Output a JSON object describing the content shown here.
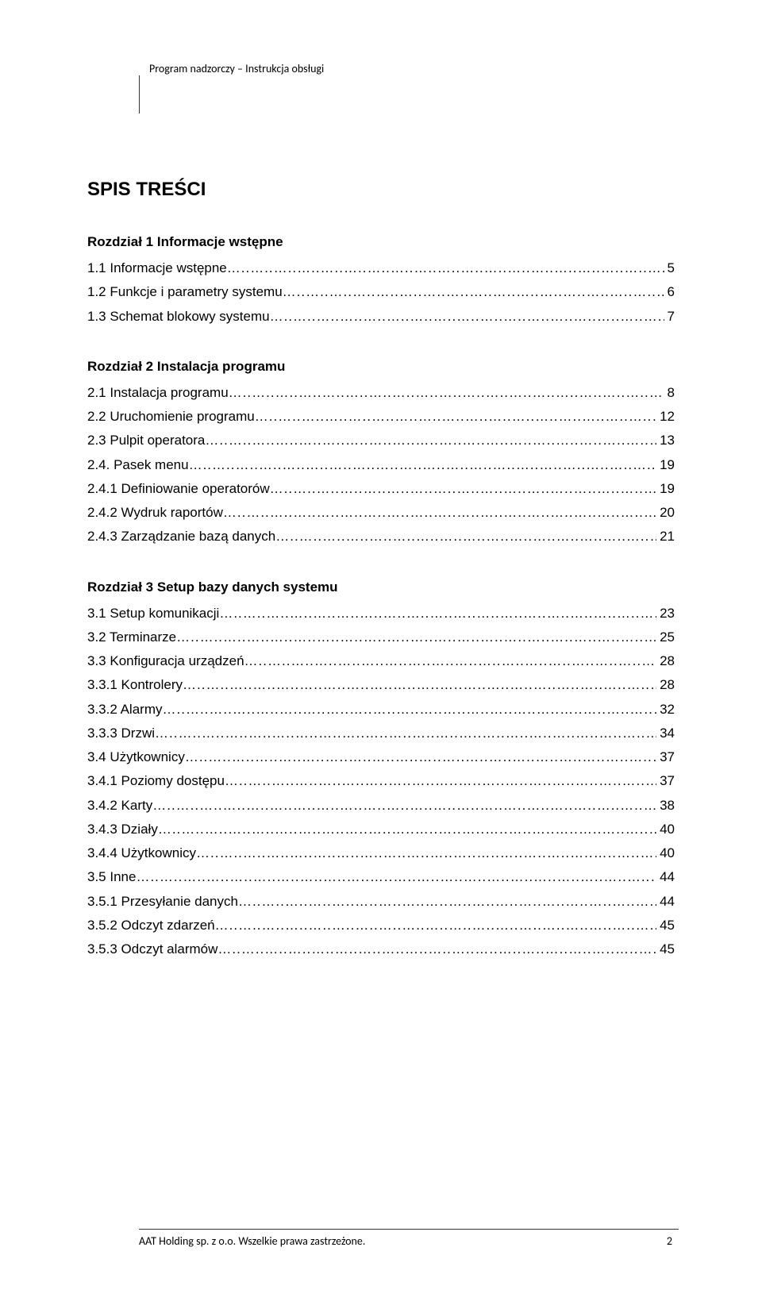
{
  "header": {
    "text": "Program nadzorczy – Instrukcja obsługi"
  },
  "title": "SPIS TREŚCI",
  "chapters": [
    {
      "heading": "Rozdział 1 Informacje wstępne",
      "entries": [
        {
          "label": "1.1 Informacje wstępne",
          "page": "5"
        },
        {
          "label": "1.2 Funkcje i parametry systemu",
          "page": "6"
        },
        {
          "label": "1.3 Schemat blokowy systemu",
          "page": "7"
        }
      ]
    },
    {
      "heading": "Rozdział 2 Instalacja programu",
      "entries": [
        {
          "label": "2.1 Instalacja programu",
          "page": "8"
        },
        {
          "label": "2.2 Uruchomienie programu",
          "page": "12"
        },
        {
          "label": "2.3 Pulpit operatora",
          "page": "13"
        },
        {
          "label": "2.4. Pasek menu",
          "page": "19"
        },
        {
          "label": "2.4.1 Definiowanie operatorów",
          "page": "19"
        },
        {
          "label": "2.4.2 Wydruk raportów",
          "page": "20"
        },
        {
          "label": "2.4.3 Zarządzanie bazą danych",
          "page": "21"
        }
      ]
    },
    {
      "heading": "Rozdział 3 Setup bazy danych systemu",
      "entries": [
        {
          "label": "3.1 Setup komunikacji",
          "page": "23"
        },
        {
          "label": "3.2 Terminarze",
          "page": "25"
        },
        {
          "label": "3.3 Konfiguracja urządzeń",
          "page": "28"
        },
        {
          "label": "3.3.1 Kontrolery",
          "page": "28"
        },
        {
          "label": "3.3.2 Alarmy",
          "page": "32"
        },
        {
          "label": "3.3.3 Drzwi",
          "page": "34"
        },
        {
          "label": "3.4 Użytkownicy",
          "page": "37"
        },
        {
          "label": "3.4.1 Poziomy dostępu",
          "page": "37"
        },
        {
          "label": "3.4.2 Karty",
          "page": "38"
        },
        {
          "label": "3.4.3 Działy",
          "page": "40"
        },
        {
          "label": "3.4.4 Użytkownicy",
          "page": "40"
        },
        {
          "label": "3.5 Inne",
          "page": "44"
        },
        {
          "label": "3.5.1 Przesyłanie danych",
          "page": "44"
        },
        {
          "label": "3.5.2 Odczyt zdarzeń",
          "page": "45"
        },
        {
          "label": "3.5.3 Odczyt alarmów",
          "page": "45"
        }
      ]
    }
  ],
  "footer": {
    "text": "AAT Holding sp. z o.o.  Wszelkie prawa zastrzeżone.",
    "page": "2"
  }
}
